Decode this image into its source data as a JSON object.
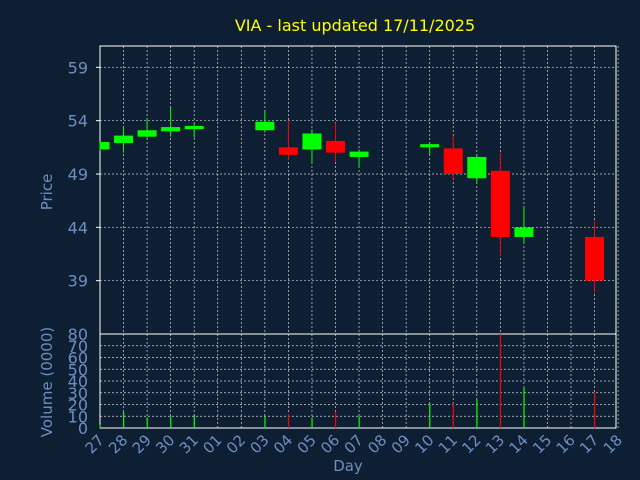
{
  "chart_data": [
    {
      "type": "candlestick",
      "title": "VIA - last updated 17/11/2025",
      "ylabel": "Price",
      "ylim": [
        34,
        61
      ],
      "yticks": [
        39,
        44,
        49,
        54,
        59
      ],
      "grid": true,
      "colors": {
        "up": "#00ff00",
        "down": "#ff0000",
        "title": "#ffff00",
        "axis_text": "#6b8fc0",
        "background": "#0f1f33",
        "grid": "#ffffff"
      },
      "categories": [
        "27",
        "28",
        "29",
        "30",
        "31",
        "01",
        "02",
        "03",
        "04",
        "05",
        "06",
        "07",
        "08",
        "09",
        "10",
        "11",
        "12",
        "13",
        "14",
        "15",
        "16",
        "17",
        "18"
      ],
      "candles": [
        {
          "day": "27",
          "open": 51.3,
          "close": 52.0,
          "high": 52.0,
          "low": 51.2
        },
        {
          "day": "28",
          "open": 51.9,
          "close": 52.6,
          "high": 53.4,
          "low": 51.0
        },
        {
          "day": "29",
          "open": 52.5,
          "close": 53.1,
          "high": 54.2,
          "low": 52.4
        },
        {
          "day": "30",
          "open": 53.0,
          "close": 53.4,
          "high": 55.3,
          "low": 52.5
        },
        {
          "day": "31",
          "open": 53.2,
          "close": 53.5,
          "high": 53.8,
          "low": 52.4
        },
        {
          "day": "03",
          "open": 53.1,
          "close": 53.9,
          "high": 54.9,
          "low": 52.9
        },
        {
          "day": "04",
          "open": 51.5,
          "close": 50.8,
          "high": 54.0,
          "low": 50.3
        },
        {
          "day": "05",
          "open": 51.3,
          "close": 52.8,
          "high": 53.2,
          "low": 50.0
        },
        {
          "day": "06",
          "open": 52.1,
          "close": 51.0,
          "high": 53.8,
          "low": 50.1
        },
        {
          "day": "07",
          "open": 50.6,
          "close": 51.1,
          "high": 51.3,
          "low": 49.6
        },
        {
          "day": "10",
          "open": 51.5,
          "close": 51.8,
          "high": 52.0,
          "low": 50.8
        },
        {
          "day": "11",
          "open": 51.4,
          "close": 49.0,
          "high": 52.6,
          "low": 48.5
        },
        {
          "day": "12",
          "open": 48.6,
          "close": 50.6,
          "high": 50.8,
          "low": 48.1
        },
        {
          "day": "13",
          "open": 49.3,
          "close": 43.1,
          "high": 51.0,
          "low": 41.3
        },
        {
          "day": "14",
          "open": 43.1,
          "close": 44.0,
          "high": 46.0,
          "low": 42.5
        },
        {
          "day": "17",
          "open": 43.1,
          "close": 39.0,
          "high": 44.6,
          "low": 37.8
        }
      ]
    },
    {
      "type": "bar",
      "xlabel": "Day",
      "ylabel": "Volume (0000)",
      "ylim": [
        0,
        80
      ],
      "yticks": [
        0,
        10,
        20,
        30,
        40,
        50,
        60,
        70,
        80
      ],
      "grid": true,
      "categories": [
        "27",
        "28",
        "29",
        "30",
        "31",
        "01",
        "02",
        "03",
        "04",
        "05",
        "06",
        "07",
        "08",
        "09",
        "10",
        "11",
        "12",
        "13",
        "14",
        "15",
        "16",
        "17",
        "18"
      ],
      "volumes": [
        {
          "day": "27",
          "value": 3,
          "dir": "up"
        },
        {
          "day": "28",
          "value": 14,
          "dir": "up"
        },
        {
          "day": "29",
          "value": 9,
          "dir": "up"
        },
        {
          "day": "30",
          "value": 10,
          "dir": "up"
        },
        {
          "day": "31",
          "value": 11,
          "dir": "up"
        },
        {
          "day": "03",
          "value": 10,
          "dir": "up"
        },
        {
          "day": "04",
          "value": 12,
          "dir": "down"
        },
        {
          "day": "05",
          "value": 9,
          "dir": "up"
        },
        {
          "day": "06",
          "value": 14,
          "dir": "down"
        },
        {
          "day": "07",
          "value": 10,
          "dir": "up"
        },
        {
          "day": "10",
          "value": 21,
          "dir": "up"
        },
        {
          "day": "11",
          "value": 21,
          "dir": "down"
        },
        {
          "day": "12",
          "value": 24,
          "dir": "up"
        },
        {
          "day": "13",
          "value": 80,
          "dir": "down"
        },
        {
          "day": "14",
          "value": 34,
          "dir": "up"
        },
        {
          "day": "17",
          "value": 30,
          "dir": "down"
        }
      ]
    }
  ]
}
